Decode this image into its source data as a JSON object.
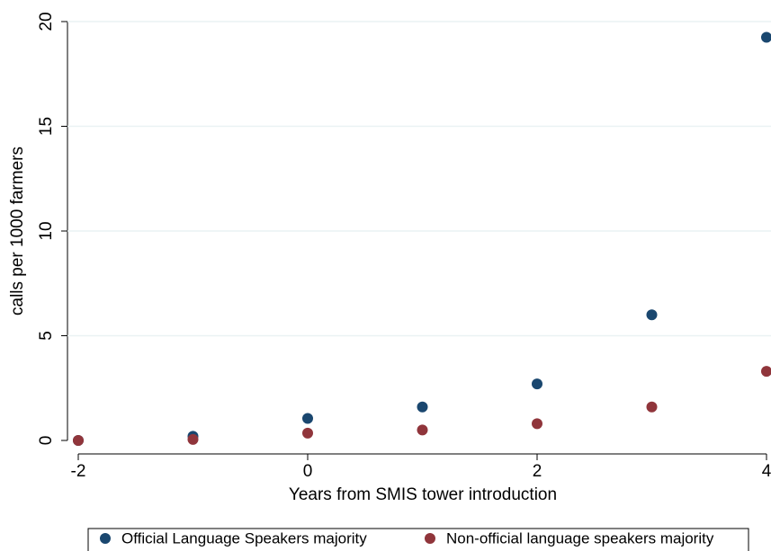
{
  "chart_data": {
    "type": "scatter",
    "x": [
      -2,
      -1,
      0,
      1,
      2,
      3,
      4
    ],
    "series": [
      {
        "name": "Official Language Speakers majority",
        "color": "#1a476f",
        "values": [
          0,
          0.2,
          1.05,
          1.6,
          2.7,
          6,
          19.25
        ]
      },
      {
        "name": "Non-official language speakers majority",
        "color": "#90353b",
        "values": [
          0,
          0.05,
          0.35,
          0.5,
          0.8,
          1.6,
          3.3
        ]
      }
    ],
    "x_label": "Years from SMIS tower introduction",
    "y_label": "calls per 1000 farmers",
    "xlim": [
      -2,
      4
    ],
    "xticks": [
      -2,
      0,
      2,
      4
    ],
    "ylim": [
      0,
      20
    ],
    "yticks": [
      0,
      5,
      10,
      15,
      20
    ],
    "grid": true,
    "legend": "bottom"
  }
}
